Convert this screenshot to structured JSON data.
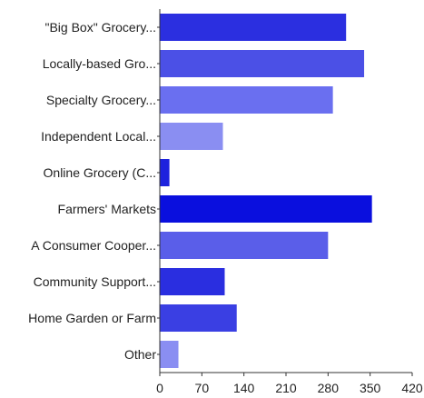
{
  "chart_data": {
    "type": "bar",
    "orientation": "horizontal",
    "categories": [
      "\"Big Box\" Grocery...",
      "Locally-based Gro...",
      "Specialty Grocery...",
      "Independent Local...",
      "Online Grocery (C...",
      "Farmers' Markets",
      "A Consumer Cooper...",
      "Community Support...",
      "Home Garden or Farm",
      "Other"
    ],
    "values": [
      310,
      340,
      288,
      105,
      16,
      353,
      280,
      108,
      128,
      31
    ],
    "bar_colors": [
      "#2b2fe0",
      "#4b50e6",
      "#6a6ff0",
      "#8a8ef2",
      "#1d22dd",
      "#0a0fde",
      "#5a5ee9",
      "#2a2ee0",
      "#3a3fe3",
      "#8a8ef2"
    ],
    "xlim": [
      0,
      420
    ],
    "xticks": [
      0,
      70,
      140,
      210,
      280,
      350,
      420
    ],
    "title": "",
    "xlabel": "",
    "ylabel": "",
    "grid": false,
    "legend": "none"
  }
}
